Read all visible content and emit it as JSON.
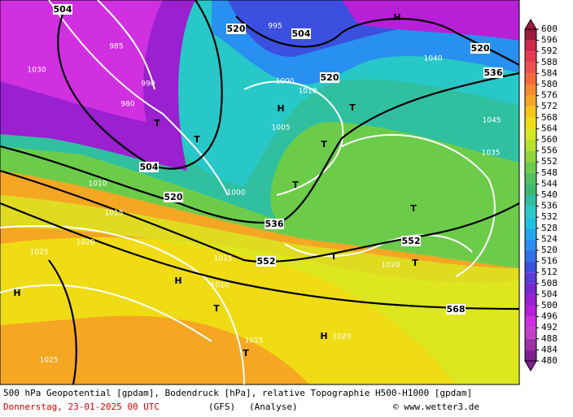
{
  "map": {
    "labels": [
      "504",
      "520",
      "504",
      "520",
      "520",
      "536",
      "504",
      "520",
      "536",
      "552",
      "552",
      "568",
      "995",
      "1000",
      "1005",
      "1010",
      "1015",
      "1020",
      "1025",
      "1030",
      "1035",
      "1040",
      "1045",
      "980",
      "985",
      "990",
      "1010",
      "1015",
      "1020",
      "1025",
      "1020",
      "1015",
      "1010",
      "1000",
      "H",
      "H",
      "H",
      "H",
      "H",
      "T",
      "T",
      "T",
      "T",
      "T",
      "T",
      "T",
      "T",
      "T",
      "T"
    ],
    "legend": {
      "ticks": [
        600,
        596,
        592,
        588,
        584,
        580,
        576,
        572,
        568,
        564,
        560,
        556,
        552,
        548,
        544,
        540,
        536,
        532,
        528,
        524,
        520,
        516,
        512,
        508,
        504,
        500,
        496,
        492,
        488,
        484,
        480
      ],
      "colors": [
        "#a01a3c",
        "#d0284a",
        "#e83a50",
        "#f25050",
        "#f46a3a",
        "#f58a2a",
        "#f5a623",
        "#f5c518",
        "#f0dc14",
        "#d8e820",
        "#b6e02a",
        "#8fd63a",
        "#6ccc4a",
        "#52c060",
        "#3cb870",
        "#30c0a0",
        "#28c8c8",
        "#20c0e0",
        "#20a8f0",
        "#2890f0",
        "#3070e8",
        "#3c50e0",
        "#5a3cd8",
        "#7a28d0",
        "#9a20d0",
        "#b820d8",
        "#d030e0",
        "#c040c8",
        "#a030a8",
        "#802090"
      ]
    },
    "footer": {
      "line1": "500 hPa Geopotential [gpdam], Bodendruck [hPa], relative Topographie H500-H1000 [gpdam]",
      "date": "Donnerstag, 23-01-2025  00 UTC",
      "model": "(GFS)",
      "analysis": "(Analyse)",
      "credit": "© www.wetter3.de"
    }
  }
}
